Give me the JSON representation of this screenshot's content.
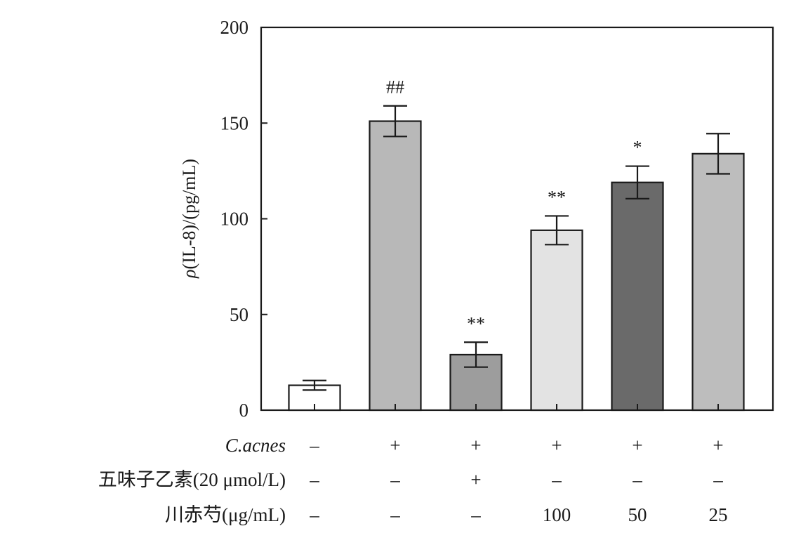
{
  "chart_data": {
    "type": "bar",
    "ylabel": "ρ(IL-8)/(pg/mL)",
    "ylabel_symbol": "ρ",
    "ylabel_rest": "(IL-8)/(pg/mL)",
    "ylim": [
      0,
      200
    ],
    "yticks": [
      "0",
      "50",
      "100",
      "150",
      "200"
    ],
    "grid": false,
    "values": [
      13,
      151,
      29,
      94,
      119,
      134
    ],
    "errors": [
      2.5,
      8,
      6.5,
      7.5,
      8.5,
      10.5
    ],
    "bar_colors": [
      "#ffffff",
      "#b8b8b8",
      "#9d9d9d",
      "#e3e3e3",
      "#6a6a6a",
      "#bdbdbd"
    ],
    "annotations": [
      "",
      "##",
      "**",
      "**",
      "*",
      ""
    ],
    "conditions": [
      {
        "label": "C.acnes",
        "italic": true,
        "values": [
          "–",
          "+",
          "+",
          "+",
          "+",
          "+"
        ]
      },
      {
        "label": "五味子乙素(20 μmol/L)",
        "italic": false,
        "values": [
          "–",
          "–",
          "+",
          "–",
          "–",
          "–"
        ]
      },
      {
        "label": "川赤芍(μg/mL)",
        "italic": false,
        "values": [
          "–",
          "–",
          "–",
          "100",
          "50",
          "25"
        ]
      }
    ]
  }
}
